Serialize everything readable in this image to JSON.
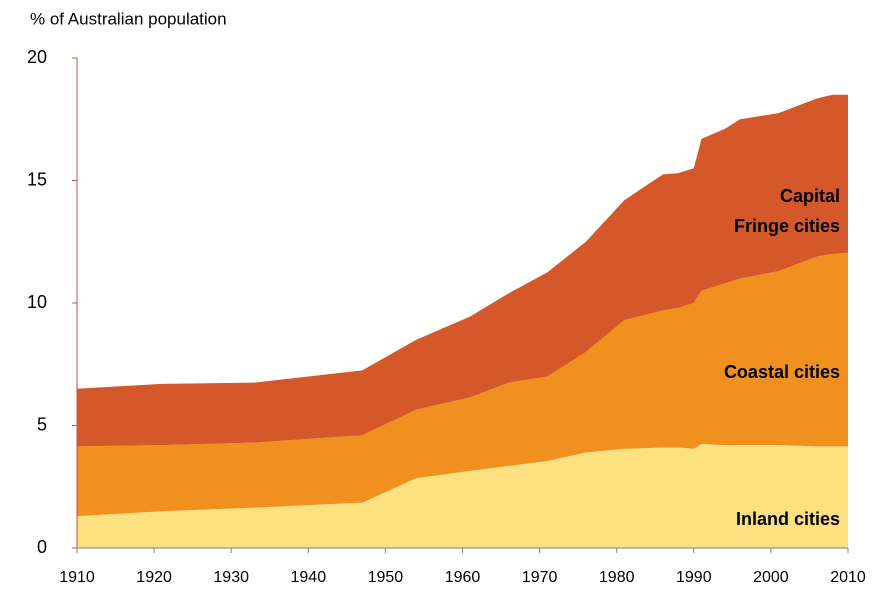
{
  "chart_data": {
    "type": "stacked_area",
    "title": "% of Australian population",
    "x": [
      1910,
      1921,
      1933,
      1947,
      1954,
      1961,
      1966,
      1971,
      1976,
      1981,
      1986,
      1988,
      1990,
      1991,
      1994,
      1996,
      2001,
      2006,
      2008,
      2010
    ],
    "series": [
      {
        "name": "Inland cities",
        "color": "#fde07f",
        "values": [
          1.3,
          1.5,
          1.65,
          1.85,
          2.85,
          3.15,
          3.35,
          3.55,
          3.9,
          4.05,
          4.1,
          4.1,
          4.05,
          4.25,
          4.2,
          4.2,
          4.2,
          4.15,
          4.15,
          4.15
        ]
      },
      {
        "name": "Coastal cities",
        "color": "#f0901f",
        "values": [
          2.85,
          2.7,
          2.65,
          2.75,
          2.8,
          3.0,
          3.4,
          3.45,
          4.1,
          5.25,
          5.6,
          5.7,
          5.95,
          6.25,
          6.6,
          6.8,
          7.1,
          7.75,
          7.85,
          7.9
        ]
      },
      {
        "name": "Capital Fringe cities",
        "color": "#d5582a",
        "values": [
          2.35,
          2.5,
          2.45,
          2.65,
          2.85,
          3.3,
          3.65,
          4.25,
          4.5,
          4.9,
          5.55,
          5.5,
          5.5,
          6.2,
          6.3,
          6.5,
          6.45,
          6.45,
          6.5,
          6.45
        ]
      }
    ],
    "xlim": [
      1910,
      2010
    ],
    "xticks": [
      1910,
      1920,
      1930,
      1940,
      1950,
      1960,
      1970,
      1980,
      1990,
      2000,
      2010
    ],
    "ylim": [
      0,
      20
    ],
    "yticks": [
      0,
      5,
      10,
      15,
      20
    ],
    "grid": false
  }
}
